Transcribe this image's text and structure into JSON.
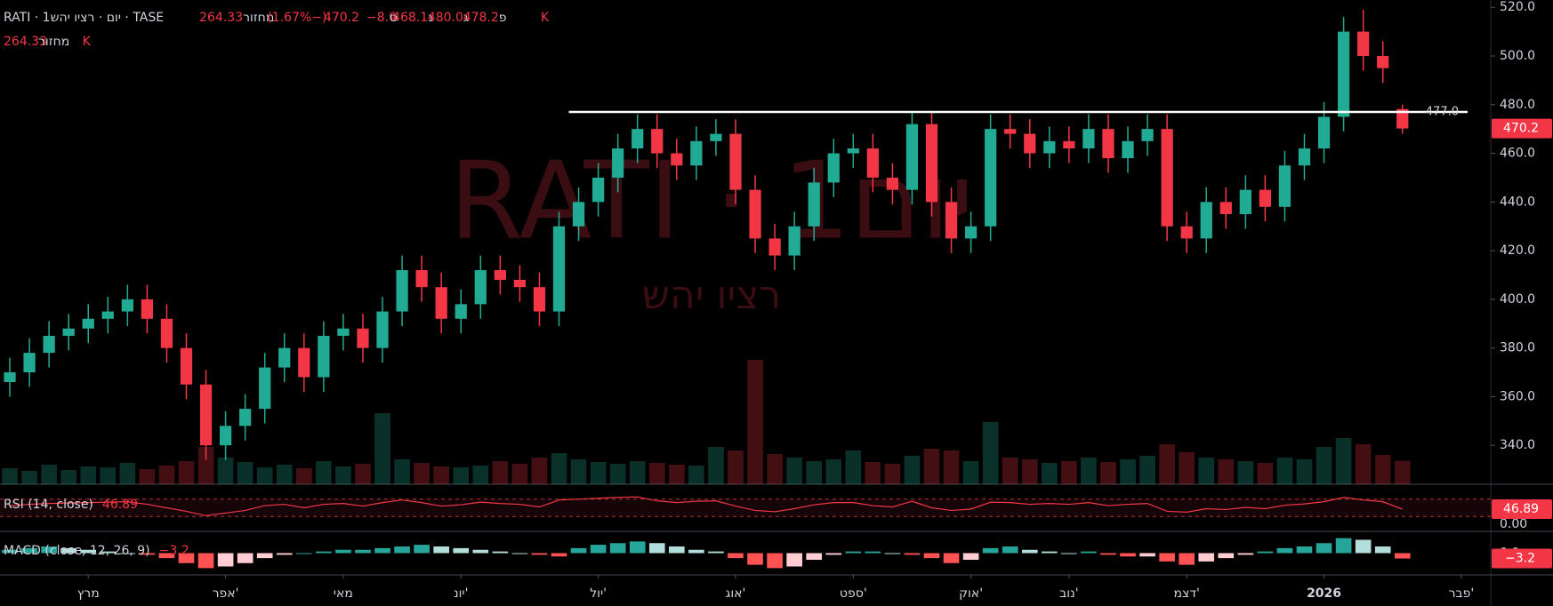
{
  "chart_data": {
    "type": "candlestick",
    "title": "RATI · 1יום · רציו יהש · TASE",
    "ohlc_labels": [
      {
        "prefix": "פ",
        "text": "478.2"
      },
      {
        "prefix": "ג",
        "text": "480.0"
      },
      {
        "prefix": "נ",
        "text": "468.1"
      },
      {
        "prefix": "ס",
        "text": "470.2"
      }
    ],
    "change_label": "−8.0 (−1.67%)",
    "volume_title": "מחזור",
    "volume_label": "264.33 K",
    "watermark": "RATI · 1יום",
    "watermark_subtitle": "רציו יהש",
    "up_color": "#22ab94",
    "down_color": "#f23645",
    "open": [
      366,
      370,
      378,
      385,
      388,
      392,
      395,
      400,
      392,
      380,
      365,
      340,
      348,
      355,
      372,
      380,
      368,
      385,
      388,
      380,
      395,
      412,
      405,
      392,
      398,
      412,
      408,
      405,
      395,
      430,
      440,
      450,
      462,
      470,
      460,
      455,
      465,
      468,
      445,
      425,
      418,
      430,
      448,
      460,
      462,
      450,
      445,
      472,
      440,
      425,
      430,
      470,
      468,
      460,
      465,
      462,
      470,
      458,
      465,
      470,
      430,
      425,
      440,
      435,
      445,
      438,
      455,
      462,
      475,
      510,
      500,
      478.2
    ],
    "high": [
      376,
      384,
      391,
      394,
      398,
      401,
      406,
      406,
      398,
      386,
      371,
      354,
      361,
      378,
      386,
      386,
      391,
      394,
      394,
      401,
      418,
      418,
      411,
      404,
      418,
      418,
      414,
      411,
      436,
      446,
      456,
      468,
      476,
      476,
      466,
      471,
      474,
      474,
      451,
      431,
      436,
      454,
      466,
      468,
      468,
      456,
      477,
      477,
      446,
      436,
      476,
      476,
      474,
      471,
      471,
      476,
      476,
      471,
      476,
      476,
      436,
      446,
      446,
      451,
      451,
      461,
      468,
      481,
      516,
      519,
      506,
      480
    ],
    "low": [
      360,
      364,
      372,
      379,
      382,
      386,
      389,
      386,
      374,
      359,
      334,
      334,
      342,
      349,
      366,
      362,
      362,
      379,
      374,
      374,
      389,
      399,
      386,
      386,
      392,
      402,
      399,
      389,
      389,
      424,
      434,
      444,
      456,
      454,
      449,
      449,
      459,
      439,
      419,
      412,
      412,
      424,
      442,
      454,
      444,
      439,
      439,
      434,
      419,
      419,
      424,
      462,
      454,
      454,
      456,
      456,
      452,
      452,
      459,
      424,
      419,
      419,
      429,
      429,
      432,
      432,
      449,
      456,
      469,
      494,
      489,
      468.1
    ],
    "close": [
      370,
      378,
      385,
      388,
      392,
      395,
      400,
      392,
      380,
      365,
      340,
      348,
      355,
      372,
      380,
      368,
      385,
      388,
      380,
      395,
      412,
      405,
      392,
      398,
      412,
      408,
      405,
      395,
      430,
      440,
      450,
      462,
      470,
      460,
      455,
      465,
      468,
      445,
      425,
      418,
      430,
      448,
      460,
      462,
      450,
      445,
      472,
      440,
      425,
      430,
      470,
      468,
      460,
      465,
      462,
      470,
      458,
      465,
      470,
      430,
      425,
      440,
      435,
      445,
      438,
      455,
      462,
      475,
      510,
      500,
      495,
      470.2
    ],
    "volume": [
      180,
      150,
      220,
      160,
      200,
      190,
      240,
      170,
      210,
      260,
      420,
      300,
      250,
      190,
      220,
      180,
      260,
      200,
      230,
      800,
      280,
      240,
      200,
      190,
      210,
      260,
      230,
      300,
      350,
      280,
      250,
      230,
      260,
      240,
      220,
      210,
      420,
      380,
      1400,
      340,
      300,
      260,
      280,
      380,
      250,
      230,
      320,
      400,
      380,
      260,
      700,
      300,
      280,
      240,
      260,
      300,
      250,
      280,
      320,
      450,
      360,
      300,
      280,
      260,
      240,
      300,
      280,
      420,
      520,
      450,
      330,
      264.33
    ],
    "xlim": [
      -0.5,
      75.5
    ],
    "xticks": [
      {
        "value": 4,
        "label": "מרץ"
      },
      {
        "value": 11,
        "label": "אפר'"
      },
      {
        "value": 17,
        "label": "מאי"
      },
      {
        "value": 23,
        "label": "יונ'"
      },
      {
        "value": 30,
        "label": "יול'"
      },
      {
        "value": 37,
        "label": "אוג'"
      },
      {
        "value": 43,
        "label": "ספט'"
      },
      {
        "value": 49,
        "label": "אוק'"
      },
      {
        "value": 54,
        "label": "נוב'"
      },
      {
        "value": 60,
        "label": "דצמ'"
      },
      {
        "value": 67,
        "label": "2026"
      },
      {
        "value": 74,
        "label": "פבר'"
      }
    ],
    "ylim": [
      324,
      523
    ],
    "yticks": [
      {
        "value": 340,
        "label": "340.0"
      },
      {
        "value": 360,
        "label": "360.0"
      },
      {
        "value": 380,
        "label": "380.0"
      },
      {
        "value": 400,
        "label": "400.0"
      },
      {
        "value": 420,
        "label": "420.0"
      },
      {
        "value": 440,
        "label": "440.0"
      },
      {
        "value": 460,
        "label": "460.0"
      },
      {
        "value": 480,
        "label": "480.0"
      },
      {
        "value": 500,
        "label": "500.0"
      },
      {
        "value": 520,
        "label": "520.0"
      }
    ],
    "hline": {
      "value": 477,
      "label": "477.0",
      "color": "#ffffff"
    },
    "rsi": {
      "title": "RSI (14, close)",
      "color": "#f23645",
      "values": [
        55,
        58,
        60,
        61,
        62,
        63,
        64,
        58,
        50,
        42,
        32,
        38,
        44,
        55,
        58,
        50,
        58,
        60,
        54,
        62,
        68,
        62,
        54,
        57,
        63,
        60,
        58,
        52,
        68,
        70,
        72,
        74,
        75,
        66,
        62,
        65,
        66,
        54,
        44,
        41,
        48,
        57,
        62,
        62,
        55,
        52,
        65,
        50,
        44,
        47,
        63,
        62,
        58,
        60,
        58,
        62,
        55,
        58,
        60,
        42,
        40,
        48,
        46,
        51,
        48,
        56,
        59,
        64,
        74,
        68,
        64,
        46.89
      ],
      "ylim": [
        0,
        100
      ],
      "bands": [
        30,
        70
      ],
      "yticks": [
        {
          "value": 0,
          "label": "0.00"
        }
      ]
    },
    "macd": {
      "title": "MACD (close, 12, 26, 9)",
      "values": [
        2,
        3,
        4,
        3,
        2,
        1,
        0,
        -1,
        -3,
        -6,
        -9,
        -8,
        -6,
        -3,
        -1,
        0,
        1,
        2,
        2,
        3,
        4,
        5,
        4,
        3,
        2,
        1,
        0,
        -1,
        -2,
        3,
        5,
        6,
        7,
        6,
        4,
        2,
        1,
        -3,
        -7,
        -9,
        -8,
        -4,
        -1,
        1,
        1,
        0,
        -1,
        -3,
        -6,
        -4,
        3,
        4,
        2,
        1,
        0,
        1,
        -1,
        -2,
        -2,
        -5,
        -7,
        -5,
        -3,
        -1,
        1,
        3,
        4,
        6,
        9,
        8,
        4,
        -3.2
      ],
      "value_label": "−3.2",
      "ylim": [
        -12,
        12
      ],
      "yticks": [
        {
          "value": 0,
          "label": "0.0"
        }
      ]
    }
  }
}
